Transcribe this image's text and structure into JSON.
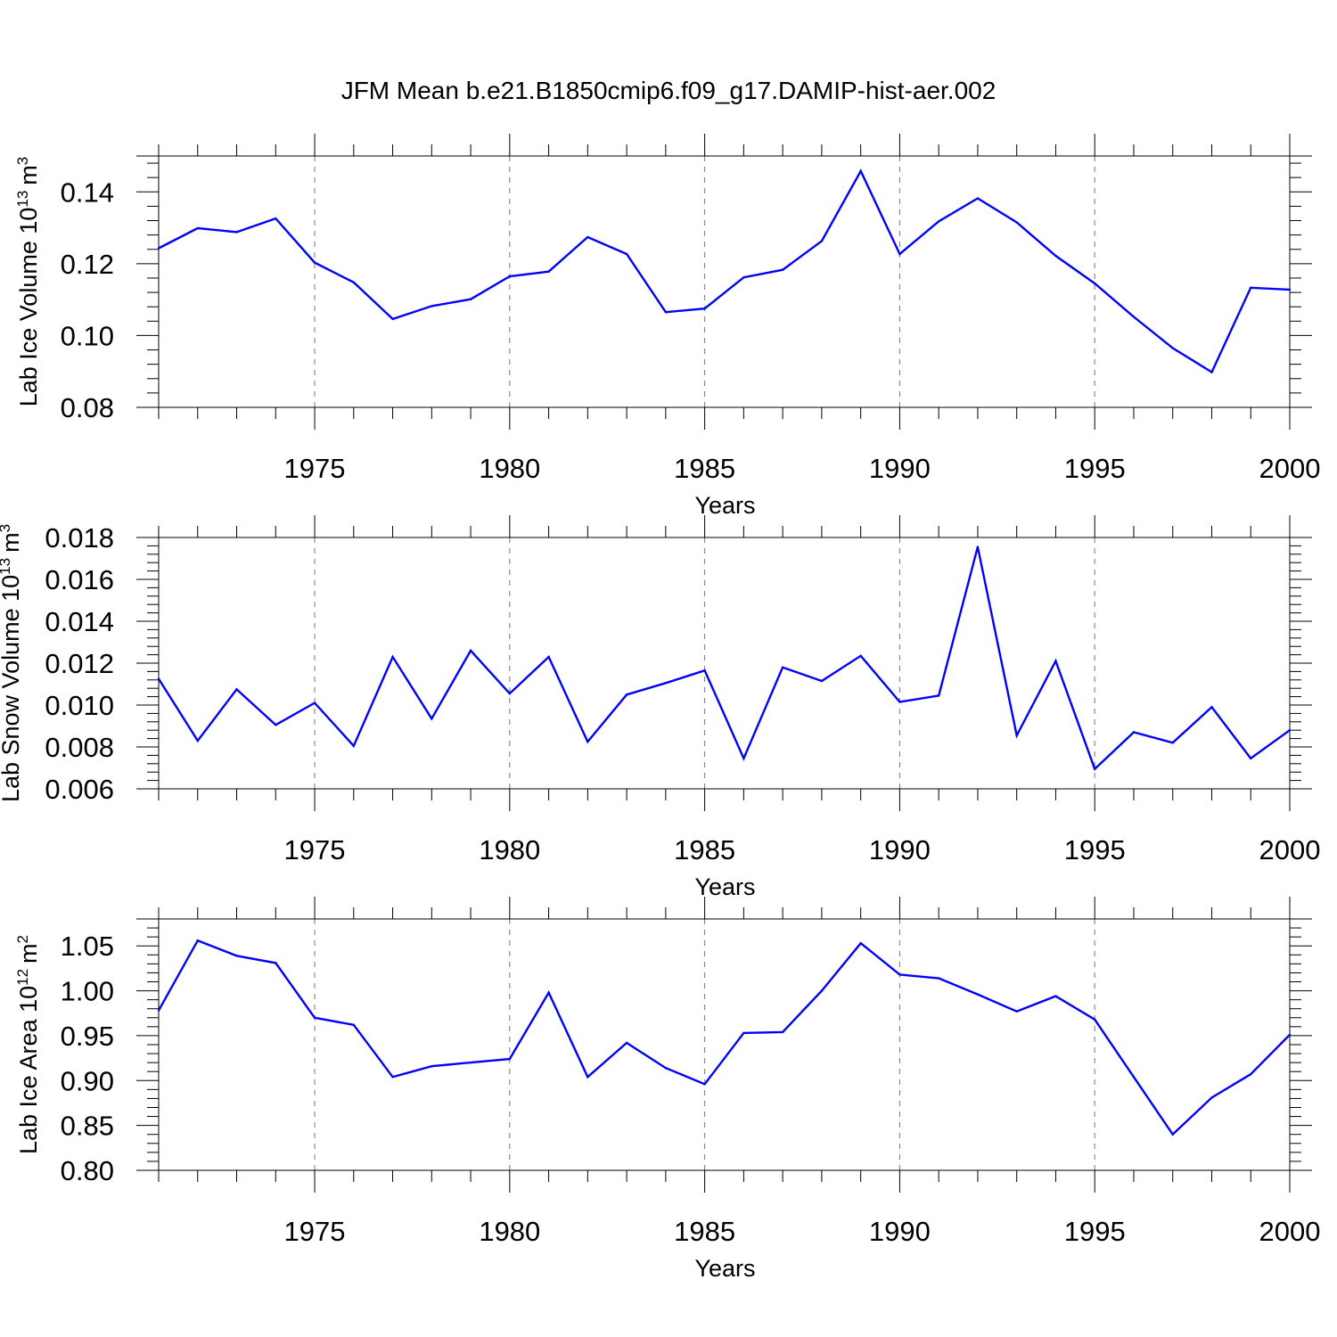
{
  "figure_title": "JFM Mean b.e21.B1850cmip6.f09_g17.DAMIP-hist-aer.002",
  "colors": {
    "series": "#0000ff",
    "axis": "#000000",
    "grid": "#777777"
  },
  "chart_data": [
    {
      "type": "line",
      "ylabel": "Lab Ice Volume",
      "ylabel_unit_base": "10",
      "ylabel_unit_exp": "13",
      "ylabel_unit_var": "m",
      "ylabel_unit_var_exp": "3",
      "xlabel": "Years",
      "xlim": [
        1971,
        2000
      ],
      "ylim": [
        0.08,
        0.15
      ],
      "xticks": [
        1975,
        1980,
        1985,
        1990,
        1995,
        2000
      ],
      "xtick_labels": [
        "1975",
        "1980",
        "1985",
        "1990",
        "1995",
        "2000"
      ],
      "yticks": [
        0.08,
        0.1,
        0.12,
        0.14
      ],
      "ytick_labels": [
        "0.08",
        "0.10",
        "0.12",
        "0.14"
      ],
      "grid_x": [
        1975,
        1980,
        1985,
        1990,
        1995
      ],
      "x": [
        1971,
        1972,
        1973,
        1974,
        1975,
        1976,
        1977,
        1978,
        1979,
        1980,
        1981,
        1982,
        1983,
        1984,
        1985,
        1986,
        1987,
        1988,
        1989,
        1990,
        1991,
        1992,
        1993,
        1994,
        1995,
        1996,
        1997,
        1998,
        1999,
        2000
      ],
      "values": [
        0.1243,
        0.1299,
        0.1288,
        0.1326,
        0.1203,
        0.1148,
        0.1046,
        0.1082,
        0.1101,
        0.1165,
        0.1178,
        0.1274,
        0.1227,
        0.1065,
        0.1075,
        0.1162,
        0.1183,
        0.1263,
        0.1458,
        0.1227,
        0.1318,
        0.1382,
        0.1315,
        0.1222,
        0.1145,
        0.1052,
        0.0965,
        0.0898,
        0.1133,
        0.1128
      ]
    },
    {
      "type": "line",
      "ylabel": "Lab Snow Volume",
      "ylabel_unit_base": "10",
      "ylabel_unit_exp": "13",
      "ylabel_unit_var": "m",
      "ylabel_unit_var_exp": "3",
      "xlabel": "Years",
      "xlim": [
        1971,
        2000
      ],
      "ylim": [
        0.006,
        0.018
      ],
      "xticks": [
        1975,
        1980,
        1985,
        1990,
        1995,
        2000
      ],
      "xtick_labels": [
        "1975",
        "1980",
        "1985",
        "1990",
        "1995",
        "2000"
      ],
      "yticks": [
        0.006,
        0.008,
        0.01,
        0.012,
        0.014,
        0.016,
        0.018
      ],
      "ytick_labels": [
        "0.006",
        "0.008",
        "0.010",
        "0.012",
        "0.014",
        "0.016",
        "0.018"
      ],
      "grid_x": [
        1975,
        1980,
        1985,
        1990,
        1995
      ],
      "x": [
        1971,
        1972,
        1973,
        1974,
        1975,
        1976,
        1977,
        1978,
        1979,
        1980,
        1981,
        1982,
        1983,
        1984,
        1985,
        1986,
        1987,
        1988,
        1989,
        1990,
        1991,
        1992,
        1993,
        1994,
        1995,
        1996,
        1997,
        1998,
        1999,
        2000
      ],
      "values": [
        0.01125,
        0.0083,
        0.01075,
        0.00905,
        0.0101,
        0.00805,
        0.0123,
        0.00935,
        0.0126,
        0.01055,
        0.0123,
        0.00825,
        0.0105,
        0.01105,
        0.01165,
        0.00745,
        0.0118,
        0.01115,
        0.01235,
        0.01015,
        0.01045,
        0.01755,
        0.00855,
        0.0121,
        0.00695,
        0.0087,
        0.0082,
        0.0099,
        0.00745,
        0.0088
      ]
    },
    {
      "type": "line",
      "ylabel": "Lab Ice Area",
      "ylabel_unit_base": "10",
      "ylabel_unit_exp": "12",
      "ylabel_unit_var": "m",
      "ylabel_unit_var_exp": "2",
      "xlabel": "Years",
      "xlim": [
        1971,
        2000
      ],
      "ylim": [
        0.8,
        1.08
      ],
      "xticks": [
        1975,
        1980,
        1985,
        1990,
        1995,
        2000
      ],
      "xtick_labels": [
        "1975",
        "1980",
        "1985",
        "1990",
        "1995",
        "2000"
      ],
      "yticks": [
        0.8,
        0.85,
        0.9,
        0.95,
        1.0,
        1.05
      ],
      "ytick_labels": [
        "0.80",
        "0.85",
        "0.90",
        "0.95",
        "1.00",
        "1.05"
      ],
      "grid_x": [
        1975,
        1980,
        1985,
        1990,
        1995
      ],
      "x": [
        1971,
        1972,
        1973,
        1974,
        1975,
        1976,
        1977,
        1978,
        1979,
        1980,
        1981,
        1982,
        1983,
        1984,
        1985,
        1986,
        1987,
        1988,
        1989,
        1990,
        1991,
        1992,
        1993,
        1994,
        1995,
        1996,
        1997,
        1998,
        1999,
        2000
      ],
      "values": [
        0.978,
        1.056,
        1.039,
        1.031,
        0.97,
        0.962,
        0.904,
        0.916,
        0.92,
        0.924,
        0.998,
        0.904,
        0.942,
        0.914,
        0.896,
        0.953,
        0.954,
        1.0,
        1.053,
        1.018,
        1.014,
        0.996,
        0.977,
        0.994,
        0.968,
        0.904,
        0.84,
        0.881,
        0.907,
        0.951
      ]
    }
  ]
}
